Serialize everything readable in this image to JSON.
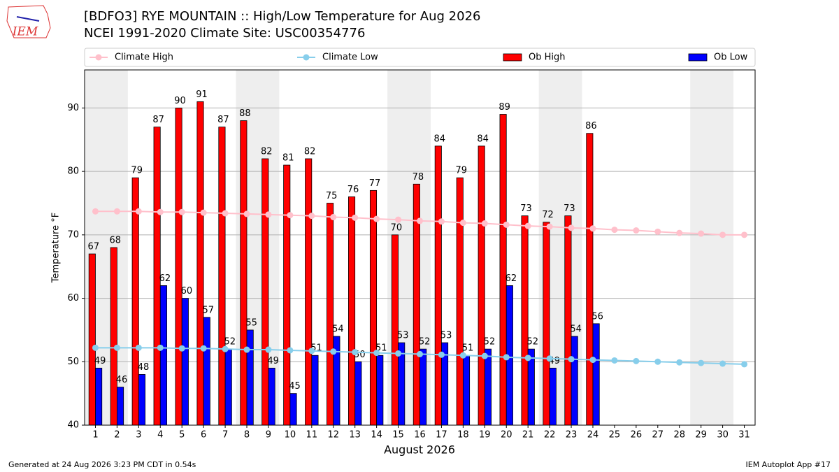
{
  "chart_data": {
    "type": "bar",
    "title": "[BDFO3] RYE MOUNTAIN :: High/Low Temperature for Aug 2026",
    "subtitle": "NCEI 1991-2020 Climate Site: USC00354776",
    "logo_text": "IEM",
    "xlabel": "August 2026",
    "ylabel": "Temperature °F",
    "footer_left": "Generated at 24 Aug 2026 3:23 PM CDT in 0.54s",
    "footer_right": "IEM Autoplot App #17",
    "x": [
      1,
      2,
      3,
      4,
      5,
      6,
      7,
      8,
      9,
      10,
      11,
      12,
      13,
      14,
      15,
      16,
      17,
      18,
      19,
      20,
      21,
      22,
      23,
      24,
      25,
      26,
      27,
      28,
      29,
      30,
      31
    ],
    "xlim": [
      0.5,
      31.5
    ],
    "xticks": [
      1,
      2,
      3,
      4,
      5,
      6,
      7,
      8,
      9,
      10,
      11,
      12,
      13,
      14,
      15,
      16,
      17,
      18,
      19,
      20,
      21,
      22,
      23,
      24,
      25,
      26,
      27,
      28,
      29,
      30,
      31
    ],
    "ylim": [
      40,
      96
    ],
    "yticks": [
      40,
      50,
      60,
      70,
      80,
      90
    ],
    "grid": true,
    "shade_spans": [
      [
        0.5,
        2.5
      ],
      [
        7.5,
        9.5
      ],
      [
        14.5,
        16.5
      ],
      [
        21.5,
        23.5
      ],
      [
        28.5,
        30.5
      ]
    ],
    "shade_color": "#eeeeee",
    "series": [
      {
        "name": "Climate High",
        "kind": "line",
        "color": "#ffc0cb",
        "values": [
          73.7,
          73.7,
          73.7,
          73.6,
          73.6,
          73.5,
          73.4,
          73.3,
          73.2,
          73.1,
          73.0,
          72.8,
          72.7,
          72.5,
          72.4,
          72.2,
          72.1,
          71.9,
          71.8,
          71.6,
          71.4,
          71.3,
          71.1,
          71.0,
          70.8,
          70.7,
          70.5,
          70.3,
          70.2,
          70.0,
          70.0
        ]
      },
      {
        "name": "Climate Low",
        "kind": "line",
        "color": "#87ceeb",
        "values": [
          52.2,
          52.2,
          52.2,
          52.2,
          52.1,
          52.1,
          52.0,
          51.9,
          51.9,
          51.8,
          51.7,
          51.6,
          51.5,
          51.4,
          51.3,
          51.2,
          51.1,
          51.0,
          50.9,
          50.7,
          50.6,
          50.5,
          50.4,
          50.3,
          50.2,
          50.1,
          50.0,
          49.9,
          49.8,
          49.7,
          49.6
        ]
      },
      {
        "name": "Ob High",
        "kind": "bar",
        "color": "#ff0000",
        "offset": -0.15,
        "values": [
          67,
          68,
          79,
          87,
          90,
          91,
          87,
          88,
          82,
          81,
          82,
          75,
          76,
          77,
          70,
          78,
          84,
          79,
          84,
          89,
          73,
          72,
          73,
          86,
          null,
          null,
          null,
          null,
          null,
          null,
          null
        ]
      },
      {
        "name": "Ob Low",
        "kind": "bar",
        "color": "#0000ff",
        "offset": 0.15,
        "values": [
          49,
          46,
          48,
          62,
          60,
          57,
          52,
          55,
          49,
          45,
          51,
          54,
          50,
          51,
          53,
          52,
          53,
          51,
          52,
          62,
          52,
          49,
          54,
          56,
          null,
          null,
          null,
          null,
          null,
          null,
          null
        ]
      }
    ]
  }
}
